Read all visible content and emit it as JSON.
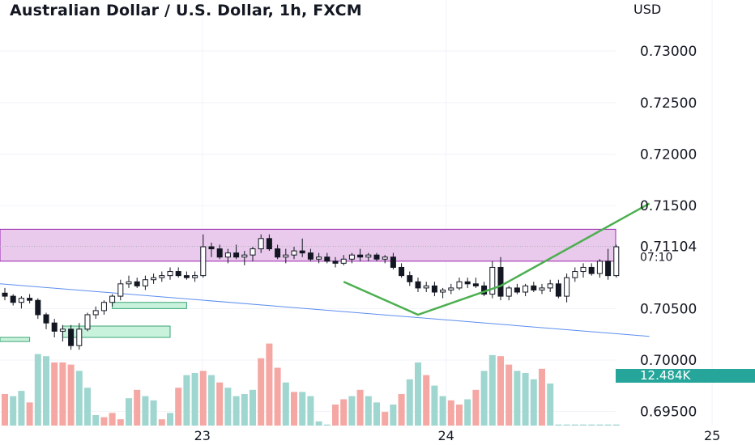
{
  "header": {
    "title": "Australian Dollar / U.S. Dollar, 1h, FXCM",
    "currency": "USD"
  },
  "price_axis": {
    "ticks": [
      "0.73000",
      "0.72500",
      "0.72000",
      "0.71500",
      "0.70500",
      "0.70000",
      "0.69500"
    ],
    "current_price": "0.71104",
    "countdown": "07:10",
    "volume_label": "12.484K"
  },
  "time_axis": {
    "ticks": [
      "23",
      "24",
      "25"
    ]
  },
  "colors": {
    "up": "#131722",
    "down": "#131722",
    "vol_up": "#9fd6cf",
    "vol_down": "#f4a7a3",
    "zone_fill": "#e9c9ec",
    "zone_line": "#9c27b0",
    "trend": "#4caf50",
    "blue_line": "#5b8def",
    "fvg_fill": "#c9f2dd",
    "fvg_line": "#3aa774",
    "volume_badge": "#26a69a"
  },
  "chart_data": {
    "type": "candlestick",
    "title": "Australian Dollar / U.S. Dollar, 1h, FXCM",
    "ylabel": "USD",
    "ylim": [
      0.6945,
      0.733
    ],
    "y_ticks": [
      0.73,
      0.725,
      0.72,
      0.715,
      0.705,
      0.7,
      0.695
    ],
    "x_ticks": [
      {
        "label": "23",
        "bar": 23.9
      },
      {
        "label": "24",
        "bar": 53.4
      },
      {
        "label": "25",
        "bar": 85.6
      }
    ],
    "candles": [
      [
        0.7065,
        0.707,
        0.7058,
        0.7062
      ],
      [
        0.7062,
        0.7064,
        0.7053,
        0.7056
      ],
      [
        0.7056,
        0.7062,
        0.705,
        0.706
      ],
      [
        0.706,
        0.7064,
        0.7055,
        0.7058
      ],
      [
        0.7058,
        0.706,
        0.704,
        0.7044
      ],
      [
        0.7044,
        0.7046,
        0.703,
        0.7036
      ],
      [
        0.7036,
        0.704,
        0.7022,
        0.7028
      ],
      [
        0.7028,
        0.7034,
        0.7018,
        0.703
      ],
      [
        0.703,
        0.7034,
        0.701,
        0.7014
      ],
      [
        0.7014,
        0.7036,
        0.701,
        0.703
      ],
      [
        0.703,
        0.7046,
        0.7028,
        0.7044
      ],
      [
        0.7044,
        0.7052,
        0.704,
        0.7048
      ],
      [
        0.7048,
        0.7058,
        0.7044,
        0.7056
      ],
      [
        0.7056,
        0.7064,
        0.7052,
        0.7062
      ],
      [
        0.7062,
        0.7078,
        0.7058,
        0.7074
      ],
      [
        0.7074,
        0.7082,
        0.707,
        0.7076
      ],
      [
        0.7076,
        0.708,
        0.707,
        0.7072
      ],
      [
        0.7072,
        0.7082,
        0.7068,
        0.7078
      ],
      [
        0.7078,
        0.7084,
        0.7074,
        0.708
      ],
      [
        0.708,
        0.7086,
        0.7076,
        0.7082
      ],
      [
        0.7082,
        0.709,
        0.7078,
        0.7086
      ],
      [
        0.7086,
        0.709,
        0.708,
        0.7082
      ],
      [
        0.7082,
        0.7086,
        0.7078,
        0.708
      ],
      [
        0.708,
        0.7086,
        0.7076,
        0.7082
      ],
      [
        0.7082,
        0.7122,
        0.708,
        0.711
      ],
      [
        0.711,
        0.7114,
        0.71,
        0.7108
      ],
      [
        0.7108,
        0.7112,
        0.7098,
        0.71
      ],
      [
        0.71,
        0.7108,
        0.7094,
        0.7104
      ],
      [
        0.7104,
        0.7112,
        0.7098,
        0.71
      ],
      [
        0.71,
        0.7106,
        0.7092,
        0.7102
      ],
      [
        0.7102,
        0.711,
        0.7096,
        0.7108
      ],
      [
        0.7108,
        0.7122,
        0.7104,
        0.7118
      ],
      [
        0.7118,
        0.7122,
        0.7106,
        0.7108
      ],
      [
        0.7108,
        0.7112,
        0.7098,
        0.71
      ],
      [
        0.71,
        0.7108,
        0.7094,
        0.7102
      ],
      [
        0.7102,
        0.711,
        0.7098,
        0.7106
      ],
      [
        0.7106,
        0.7118,
        0.71,
        0.7104
      ],
      [
        0.7104,
        0.7108,
        0.7096,
        0.7098
      ],
      [
        0.7098,
        0.7104,
        0.7094,
        0.71
      ],
      [
        0.71,
        0.7104,
        0.7094,
        0.7096
      ],
      [
        0.7096,
        0.71,
        0.709,
        0.7094
      ],
      [
        0.7094,
        0.7102,
        0.7092,
        0.7098
      ],
      [
        0.7098,
        0.7104,
        0.7094,
        0.7102
      ],
      [
        0.7102,
        0.7108,
        0.7096,
        0.71
      ],
      [
        0.71,
        0.7104,
        0.7096,
        0.7102
      ],
      [
        0.7102,
        0.7104,
        0.7096,
        0.7098
      ],
      [
        0.7098,
        0.7102,
        0.7094,
        0.71
      ],
      [
        0.71,
        0.7104,
        0.7088,
        0.709
      ],
      [
        0.709,
        0.7094,
        0.708,
        0.7082
      ],
      [
        0.7082,
        0.7086,
        0.7072,
        0.7076
      ],
      [
        0.7076,
        0.708,
        0.7066,
        0.707
      ],
      [
        0.707,
        0.7076,
        0.7066,
        0.7072
      ],
      [
        0.7072,
        0.7076,
        0.7062,
        0.7066
      ],
      [
        0.7066,
        0.707,
        0.706,
        0.7068
      ],
      [
        0.7068,
        0.7074,
        0.7064,
        0.707
      ],
      [
        0.707,
        0.708,
        0.7068,
        0.7076
      ],
      [
        0.7076,
        0.708,
        0.707,
        0.7074
      ],
      [
        0.7074,
        0.708,
        0.707,
        0.7072
      ],
      [
        0.7072,
        0.7076,
        0.7062,
        0.7064
      ],
      [
        0.7064,
        0.7096,
        0.706,
        0.709
      ],
      [
        0.709,
        0.71,
        0.7058,
        0.7062
      ],
      [
        0.7062,
        0.7072,
        0.7058,
        0.707
      ],
      [
        0.707,
        0.7074,
        0.7064,
        0.7066
      ],
      [
        0.7066,
        0.7074,
        0.7062,
        0.7072
      ],
      [
        0.7072,
        0.7076,
        0.7066,
        0.7068
      ],
      [
        0.7068,
        0.7074,
        0.7064,
        0.707
      ],
      [
        0.707,
        0.7078,
        0.7066,
        0.7074
      ],
      [
        0.7074,
        0.7078,
        0.706,
        0.7062
      ],
      [
        0.7062,
        0.7084,
        0.7056,
        0.708
      ],
      [
        0.708,
        0.709,
        0.7076,
        0.7086
      ],
      [
        0.7086,
        0.7094,
        0.708,
        0.709
      ],
      [
        0.709,
        0.7094,
        0.7082,
        0.7084
      ],
      [
        0.7084,
        0.7098,
        0.708,
        0.7096
      ],
      [
        0.7096,
        0.7108,
        0.7078,
        0.7082
      ],
      [
        0.7082,
        0.7112,
        0.708,
        0.711
      ]
    ],
    "volume": [
      [
        0.3,
        "down"
      ],
      [
        0.28,
        "up"
      ],
      [
        0.33,
        "up"
      ],
      [
        0.22,
        "down"
      ],
      [
        0.68,
        "up"
      ],
      [
        0.66,
        "up"
      ],
      [
        0.6,
        "down"
      ],
      [
        0.6,
        "down"
      ],
      [
        0.58,
        "down"
      ],
      [
        0.52,
        "up"
      ],
      [
        0.36,
        "up"
      ],
      [
        0.1,
        "up"
      ],
      [
        0.08,
        "down"
      ],
      [
        0.12,
        "down"
      ],
      [
        0.06,
        "down"
      ],
      [
        0.26,
        "up"
      ],
      [
        0.34,
        "down"
      ],
      [
        0.28,
        "up"
      ],
      [
        0.24,
        "up"
      ],
      [
        0.06,
        "down"
      ],
      [
        0.12,
        "up"
      ],
      [
        0.36,
        "down"
      ],
      [
        0.48,
        "up"
      ],
      [
        0.5,
        "up"
      ],
      [
        0.52,
        "down"
      ],
      [
        0.48,
        "up"
      ],
      [
        0.41,
        "down"
      ],
      [
        0.36,
        "up"
      ],
      [
        0.28,
        "up"
      ],
      [
        0.3,
        "up"
      ],
      [
        0.34,
        "up"
      ],
      [
        0.64,
        "down"
      ],
      [
        0.78,
        "down"
      ],
      [
        0.55,
        "down"
      ],
      [
        0.41,
        "up"
      ],
      [
        0.32,
        "down"
      ],
      [
        0.32,
        "up"
      ],
      [
        0.28,
        "up"
      ],
      [
        0.04,
        "up"
      ],
      [
        0.01,
        "up"
      ],
      [
        0.2,
        "down"
      ],
      [
        0.25,
        "down"
      ],
      [
        0.28,
        "up"
      ],
      [
        0.34,
        "down"
      ],
      [
        0.28,
        "up"
      ],
      [
        0.22,
        "up"
      ],
      [
        0.13,
        "down"
      ],
      [
        0.2,
        "up"
      ],
      [
        0.3,
        "down"
      ],
      [
        0.44,
        "up"
      ],
      [
        0.6,
        "up"
      ],
      [
        0.48,
        "down"
      ],
      [
        0.38,
        "up"
      ],
      [
        0.28,
        "up"
      ],
      [
        0.24,
        "down"
      ],
      [
        0.2,
        "down"
      ],
      [
        0.25,
        "up"
      ],
      [
        0.34,
        "down"
      ],
      [
        0.52,
        "up"
      ],
      [
        0.67,
        "up"
      ],
      [
        0.66,
        "down"
      ],
      [
        0.58,
        "down"
      ],
      [
        0.52,
        "up"
      ],
      [
        0.5,
        "up"
      ],
      [
        0.44,
        "up"
      ],
      [
        0.54,
        "down"
      ],
      [
        0.4,
        "up"
      ],
      [
        0.01,
        "up"
      ],
      [
        0.01,
        "up"
      ],
      [
        0.01,
        "up"
      ],
      [
        0.01,
        "up"
      ],
      [
        0.01,
        "up"
      ],
      [
        0.01,
        "up"
      ],
      [
        0.01,
        "up"
      ],
      [
        0.01,
        "up"
      ]
    ],
    "supply_zone": [
      0.7096,
      0.7127
    ],
    "current_price": 0.71104,
    "fvg_zones": [
      {
        "bar_start": 13,
        "bar_end": 22,
        "top": 0.7056,
        "bottom": 0.705
      },
      {
        "bar_start": 7,
        "bar_end": 20,
        "top": 0.7033,
        "bottom": 0.7022
      },
      {
        "bar_start": -2,
        "bar_end": 3,
        "top": 0.7022,
        "bottom": 0.7018
      }
    ],
    "trendline_blue": [
      {
        "bar": -2,
        "price": 0.7075
      },
      {
        "bar": 78,
        "price": 0.7023
      }
    ],
    "v_pattern": [
      {
        "bar": 41,
        "price": 0.7076
      },
      {
        "bar": 50,
        "price": 0.7044
      },
      {
        "bar": 60,
        "price": 0.7072
      },
      {
        "bar": 78,
        "price": 0.7152
      }
    ]
  }
}
